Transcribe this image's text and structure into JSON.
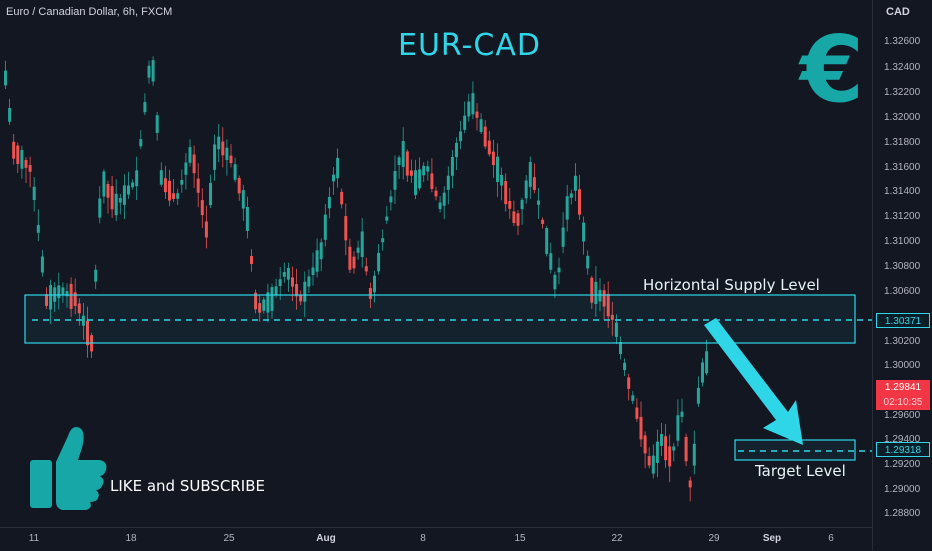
{
  "header": {
    "symbol_title": "Euro / Canadian Dollar, 6h, FXCM",
    "currency": "CAD"
  },
  "annotations": {
    "pair_title": "EUR-CAD",
    "euro_symbol": "€",
    "supply_label": "Horizontal Supply Level",
    "target_label": "Target Level",
    "like_subscribe": "LIKE and SUBSCRIBE"
  },
  "price_axis": {
    "ticks": [
      "1.32600",
      "1.32400",
      "1.32200",
      "1.32000",
      "1.31800",
      "1.31600",
      "1.31400",
      "1.31200",
      "1.31000",
      "1.30800",
      "1.30600",
      "1.30200",
      "1.30000",
      "1.29600",
      "1.29400",
      "1.29200",
      "1.29000",
      "1.28800"
    ],
    "supply_price": "1.30371",
    "target_price": "1.29318",
    "current_price": "1.29841",
    "countdown": "02:10:35"
  },
  "time_axis": {
    "ticks": [
      "11",
      "18",
      "25",
      "Aug",
      "8",
      "15",
      "22",
      "29",
      "Sep",
      "6"
    ]
  },
  "colors": {
    "background": "#131722",
    "up": "#26a69a",
    "down": "#ef5350",
    "accent": "#2fd6e8",
    "icon": "#17a7a7"
  },
  "icons": {
    "thumb": "thumbs-up-icon",
    "euro": "euro-icon",
    "arrow": "arrow-down-right-icon"
  }
}
